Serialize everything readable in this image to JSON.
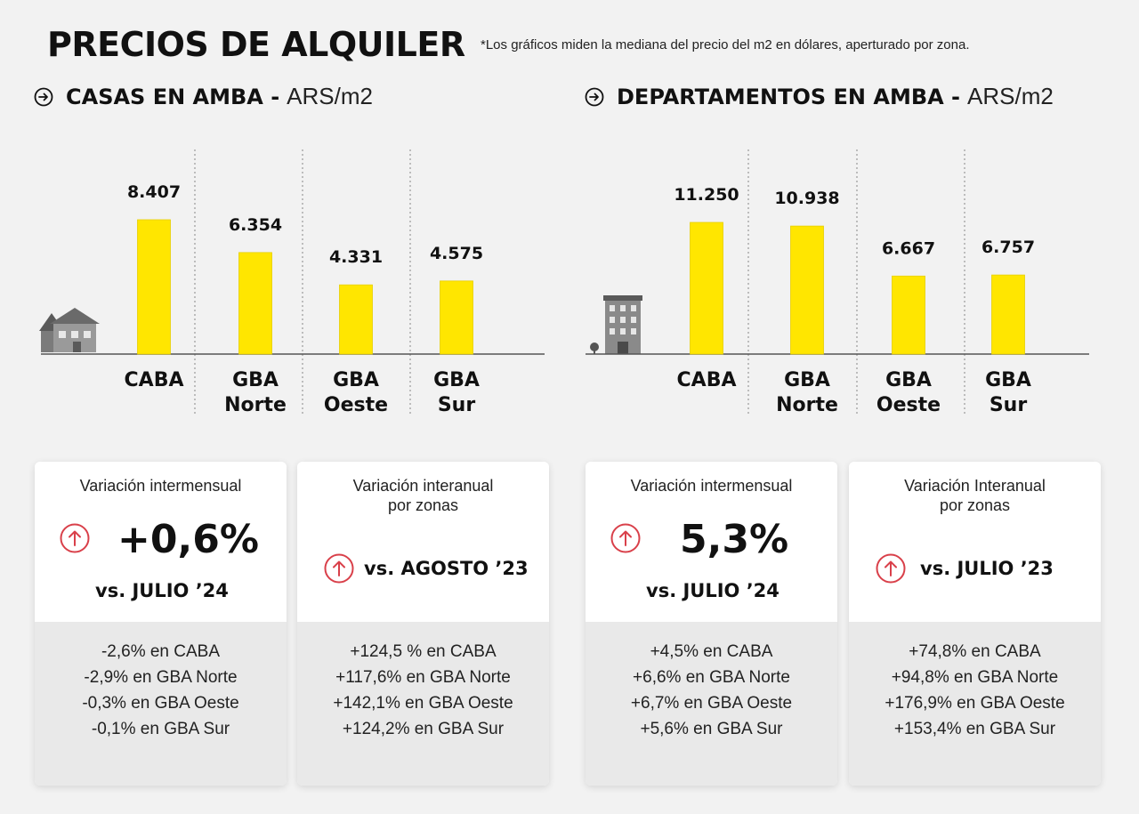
{
  "header": {
    "title": "PRECIOS DE ALQUILER",
    "footnote": "*Los gráficos miden  la mediana del precio del m2 en dólares, aperturado por zona."
  },
  "sections": {
    "casas": {
      "title": "CASAS EN AMBA -",
      "unit": "ARS/m2"
    },
    "deptos": {
      "title": "DEPARTAMENTOS EN AMBA -",
      "unit": "ARS/m2"
    }
  },
  "colors": {
    "bar": "#ffe600",
    "up_arrow": "#d9404a",
    "card_bottom": "#e9e9e9"
  },
  "chart_data": [
    {
      "type": "bar",
      "categories": [
        [
          "CABA"
        ],
        [
          "GBA",
          "Norte"
        ],
        [
          "GBA",
          "Oeste"
        ],
        [
          "GBA",
          "Sur"
        ]
      ],
      "values": [
        8407,
        6354,
        4331,
        4575
      ],
      "labels": [
        "8.407",
        "6.354",
        "4.331",
        "4.575"
      ]
    },
    {
      "type": "bar",
      "categories": [
        [
          "CABA"
        ],
        [
          "GBA",
          "Norte"
        ],
        [
          "GBA",
          "Oeste"
        ],
        [
          "GBA",
          "Sur"
        ]
      ],
      "values": [
        11250,
        10938,
        6667,
        6757
      ],
      "labels": [
        "11.250",
        "10.938",
        "6.667",
        "6.757"
      ]
    }
  ],
  "cards": [
    {
      "subtitle_lines": [
        "Variación intermensual"
      ],
      "value": "+0,6%",
      "vs": "vs. JULIO ’24",
      "details": [
        "-2,6% en CABA",
        "-2,9% en GBA Norte",
        "-0,3% en GBA Oeste",
        "-0,1% en GBA Sur"
      ]
    },
    {
      "subtitle_lines": [
        "Variación interanual",
        "por zonas"
      ],
      "value": "",
      "vs": "vs. AGOSTO ’23",
      "details": [
        "+124,5 % en CABA",
        "+117,6% en GBA Norte",
        "+142,1% en GBA Oeste",
        "+124,2% en GBA Sur"
      ]
    },
    {
      "subtitle_lines": [
        "Variación intermensual"
      ],
      "value": "5,3%",
      "vs": "vs. JULIO ’24",
      "details": [
        "+4,5% en CABA",
        "+6,6% en GBA Norte",
        "+6,7% en GBA Oeste",
        "+5,6% en GBA Sur"
      ]
    },
    {
      "subtitle_lines": [
        "Variación Interanual",
        "por zonas"
      ],
      "value": "",
      "vs": "vs. JULIO ’23",
      "details": [
        "+74,8% en CABA",
        "+94,8% en GBA Norte",
        "+176,9% en GBA Oeste",
        "+153,4% en GBA Sur"
      ]
    }
  ]
}
